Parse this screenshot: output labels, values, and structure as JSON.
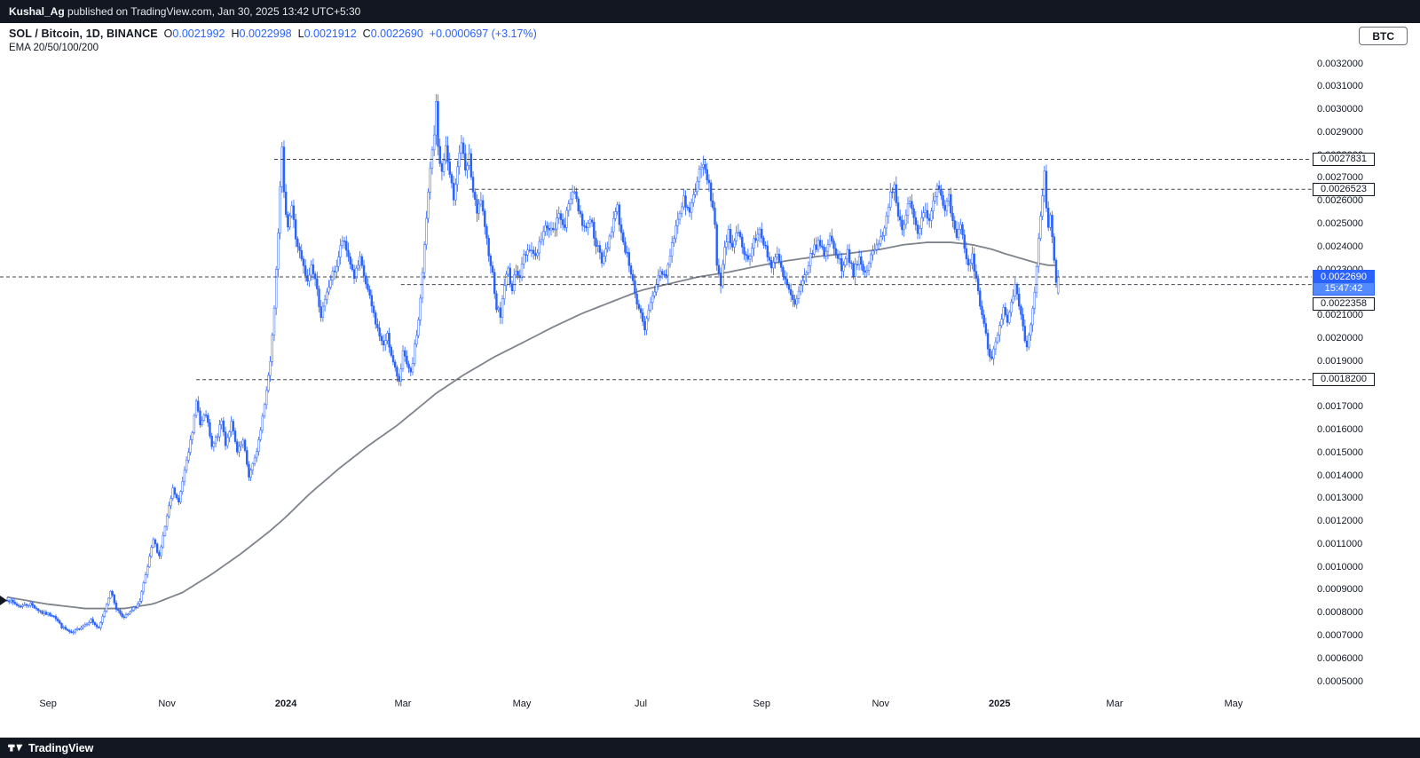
{
  "top_bar": {
    "author": "Kushal_Ag",
    "rest": " published on TradingView.com, Jan 30, 2025 13:42 UTC+5:30"
  },
  "header": {
    "symbol": "SOL / Bitcoin, 1D, BINANCE",
    "ohlc": {
      "o_label": "O",
      "o": "0.0021992",
      "h_label": "H",
      "h": "0.0022998",
      "l_label": "L",
      "l": "0.0021912",
      "c_label": "C",
      "c": "0.0022690",
      "change": "+0.0000697 (+3.17%)"
    },
    "indicator": "EMA 20/50/100/200"
  },
  "toolbar": {
    "currency_button": "BTC"
  },
  "footer": {
    "brand": "TradingView"
  },
  "colors": {
    "accent": "#2962FF",
    "candle_up_fill": "#ffffff",
    "candle_up_border": "#2962FF",
    "candle_down": "#2962FF",
    "wick": "#2962FF",
    "ema_line": "#7e838c",
    "level_line": "#42464e",
    "current_price_bg": "#2962FF",
    "countdown_bg": "#538aff",
    "bar_bg": "#131722",
    "text_dark": "#131722"
  },
  "chart_data": {
    "type": "candlestick",
    "symbol": "SOL / Bitcoin",
    "interval": "1D",
    "exchange": "BINANCE",
    "title": "SOL / Bitcoin, 1D, BINANCE",
    "last": {
      "open": 0.0021992,
      "high": 0.0022998,
      "low": 0.0021912,
      "close": 0.002269,
      "change": "+0.0000697",
      "change_pct": "+3.17%"
    },
    "y_axis": {
      "min": 0.0005,
      "max": 0.0032,
      "step": 0.0001,
      "decimals": 7
    },
    "x_ticks": [
      {
        "label": "Sep",
        "d": 21
      },
      {
        "label": "Nov",
        "d": 82
      },
      {
        "label": "2024",
        "d": 143,
        "major": true
      },
      {
        "label": "Mar",
        "d": 203
      },
      {
        "label": "May",
        "d": 264
      },
      {
        "label": "Jul",
        "d": 325
      },
      {
        "label": "Sep",
        "d": 387
      },
      {
        "label": "Nov",
        "d": 448
      },
      {
        "label": "2025",
        "d": 509,
        "major": true
      },
      {
        "label": "Mar",
        "d": 568
      },
      {
        "label": "May",
        "d": 629
      }
    ],
    "levels": [
      {
        "price": 0.0027831,
        "start_d": 137
      },
      {
        "price": 0.0026523,
        "start_d": 237
      },
      {
        "price": 0.0022358,
        "start_d": 202
      },
      {
        "price": 0.00182,
        "start_d": 97
      }
    ],
    "price_line": {
      "price": 0.002269,
      "time": "15:47:42"
    },
    "days_total": 540,
    "close_anchors": [
      [
        0,
        0.00086
      ],
      [
        6,
        0.00083
      ],
      [
        12,
        0.00084
      ],
      [
        18,
        0.0008
      ],
      [
        24,
        0.00079
      ],
      [
        28,
        0.00074
      ],
      [
        33,
        0.00071
      ],
      [
        38,
        0.00074
      ],
      [
        43,
        0.00077
      ],
      [
        47,
        0.00073
      ],
      [
        50,
        0.00081
      ],
      [
        53,
        0.0009
      ],
      [
        56,
        0.00082
      ],
      [
        60,
        0.00078
      ],
      [
        64,
        0.00081
      ],
      [
        68,
        0.00085
      ],
      [
        72,
        0.001
      ],
      [
        75,
        0.00112
      ],
      [
        78,
        0.00105
      ],
      [
        82,
        0.00122
      ],
      [
        85,
        0.00134
      ],
      [
        88,
        0.00128
      ],
      [
        92,
        0.00148
      ],
      [
        95,
        0.00158
      ],
      [
        97,
        0.00174
      ],
      [
        99,
        0.00162
      ],
      [
        102,
        0.00167
      ],
      [
        105,
        0.00152
      ],
      [
        108,
        0.00158
      ],
      [
        110,
        0.00164
      ],
      [
        112,
        0.00154
      ],
      [
        115,
        0.00163
      ],
      [
        118,
        0.0015
      ],
      [
        121,
        0.00155
      ],
      [
        124,
        0.0014
      ],
      [
        127,
        0.00147
      ],
      [
        130,
        0.0016
      ],
      [
        133,
        0.00178
      ],
      [
        135,
        0.0019
      ],
      [
        137,
        0.00215
      ],
      [
        139,
        0.00248
      ],
      [
        140,
        0.00268
      ],
      [
        141,
        0.00282
      ],
      [
        142,
        0.00262
      ],
      [
        144,
        0.0025
      ],
      [
        146,
        0.00258
      ],
      [
        148,
        0.00244
      ],
      [
        151,
        0.00234
      ],
      [
        154,
        0.00224
      ],
      [
        156,
        0.00232
      ],
      [
        158,
        0.00226
      ],
      [
        161,
        0.0021
      ],
      [
        163,
        0.00216
      ],
      [
        166,
        0.00226
      ],
      [
        169,
        0.00232
      ],
      [
        172,
        0.00243
      ],
      [
        175,
        0.00236
      ],
      [
        178,
        0.00227
      ],
      [
        181,
        0.00234
      ],
      [
        184,
        0.00224
      ],
      [
        187,
        0.00214
      ],
      [
        190,
        0.00204
      ],
      [
        193,
        0.00196
      ],
      [
        195,
        0.00203
      ],
      [
        197,
        0.00192
      ],
      [
        199,
        0.00186
      ],
      [
        201,
        0.00182
      ],
      [
        203,
        0.00194
      ],
      [
        205,
        0.00188
      ],
      [
        207,
        0.00184
      ],
      [
        209,
        0.00196
      ],
      [
        211,
        0.00208
      ],
      [
        213,
        0.00228
      ],
      [
        215,
        0.00252
      ],
      [
        217,
        0.00274
      ],
      [
        219,
        0.0029
      ],
      [
        220,
        0.00302
      ],
      [
        221,
        0.00284
      ],
      [
        223,
        0.00272
      ],
      [
        225,
        0.00284
      ],
      [
        227,
        0.0027
      ],
      [
        229,
        0.00262
      ],
      [
        231,
        0.00276
      ],
      [
        233,
        0.00286
      ],
      [
        235,
        0.00272
      ],
      [
        237,
        0.00279
      ],
      [
        239,
        0.00264
      ],
      [
        241,
        0.00254
      ],
      [
        243,
        0.00261
      ],
      [
        245,
        0.00247
      ],
      [
        247,
        0.00238
      ],
      [
        249,
        0.00228
      ],
      [
        251,
        0.00214
      ],
      [
        253,
        0.0021
      ],
      [
        255,
        0.00224
      ],
      [
        257,
        0.0023
      ],
      [
        259,
        0.00221
      ],
      [
        261,
        0.00231
      ],
      [
        263,
        0.00227
      ],
      [
        265,
        0.00236
      ],
      [
        268,
        0.0024
      ],
      [
        271,
        0.00236
      ],
      [
        274,
        0.00244
      ],
      [
        277,
        0.0025
      ],
      [
        280,
        0.00246
      ],
      [
        283,
        0.00254
      ],
      [
        286,
        0.0025
      ],
      [
        289,
        0.00262
      ],
      [
        291,
        0.00266
      ],
      [
        293,
        0.00256
      ],
      [
        296,
        0.00248
      ],
      [
        299,
        0.00253
      ],
      [
        302,
        0.00242
      ],
      [
        305,
        0.00233
      ],
      [
        308,
        0.00241
      ],
      [
        311,
        0.00252
      ],
      [
        313,
        0.00257
      ],
      [
        315,
        0.00246
      ],
      [
        318,
        0.00236
      ],
      [
        321,
        0.00226
      ],
      [
        323,
        0.00214
      ],
      [
        325,
        0.0021
      ],
      [
        327,
        0.00203
      ],
      [
        329,
        0.00212
      ],
      [
        332,
        0.00221
      ],
      [
        335,
        0.0023
      ],
      [
        338,
        0.00227
      ],
      [
        341,
        0.00241
      ],
      [
        344,
        0.00252
      ],
      [
        347,
        0.00261
      ],
      [
        350,
        0.00255
      ],
      [
        353,
        0.00266
      ],
      [
        355,
        0.00272
      ],
      [
        357,
        0.00276
      ],
      [
        359,
        0.0027
      ],
      [
        361,
        0.00262
      ],
      [
        363,
        0.0025
      ],
      [
        364,
        0.00233
      ],
      [
        366,
        0.00224
      ],
      [
        368,
        0.00238
      ],
      [
        370,
        0.00246
      ],
      [
        372,
        0.0024
      ],
      [
        374,
        0.00248
      ],
      [
        377,
        0.00241
      ],
      [
        380,
        0.00234
      ],
      [
        383,
        0.00242
      ],
      [
        386,
        0.00247
      ],
      [
        389,
        0.0024
      ],
      [
        392,
        0.00231
      ],
      [
        395,
        0.00236
      ],
      [
        398,
        0.00227
      ],
      [
        401,
        0.00221
      ],
      [
        404,
        0.00214
      ],
      [
        407,
        0.00222
      ],
      [
        410,
        0.0023
      ],
      [
        413,
        0.00238
      ],
      [
        416,
        0.00242
      ],
      [
        419,
        0.00237
      ],
      [
        422,
        0.00244
      ],
      [
        425,
        0.00238
      ],
      [
        428,
        0.00231
      ],
      [
        431,
        0.00238
      ],
      [
        434,
        0.00229
      ],
      [
        437,
        0.00234
      ],
      [
        440,
        0.00228
      ],
      [
        443,
        0.00236
      ],
      [
        446,
        0.0024
      ],
      [
        449,
        0.00246
      ],
      [
        451,
        0.00254
      ],
      [
        453,
        0.00263
      ],
      [
        455,
        0.00268
      ],
      [
        457,
        0.00254
      ],
      [
        459,
        0.00246
      ],
      [
        461,
        0.00253
      ],
      [
        463,
        0.00262
      ],
      [
        465,
        0.00254
      ],
      [
        467,
        0.00246
      ],
      [
        469,
        0.00253
      ],
      [
        471,
        0.00258
      ],
      [
        473,
        0.00251
      ],
      [
        475,
        0.00261
      ],
      [
        477,
        0.00267
      ],
      [
        479,
        0.00261
      ],
      [
        481,
        0.00255
      ],
      [
        483,
        0.00261
      ],
      [
        485,
        0.0025
      ],
      [
        487,
        0.00243
      ],
      [
        489,
        0.00249
      ],
      [
        491,
        0.0024
      ],
      [
        493,
        0.00231
      ],
      [
        495,
        0.00236
      ],
      [
        497,
        0.00226
      ],
      [
        499,
        0.00215
      ],
      [
        501,
        0.00206
      ],
      [
        503,
        0.00196
      ],
      [
        505,
        0.00191
      ],
      [
        507,
        0.002
      ],
      [
        509,
        0.00206
      ],
      [
        511,
        0.00213
      ],
      [
        513,
        0.00206
      ],
      [
        515,
        0.00215
      ],
      [
        517,
        0.00222
      ],
      [
        519,
        0.00214
      ],
      [
        521,
        0.00204
      ],
      [
        523,
        0.00195
      ],
      [
        525,
        0.00206
      ],
      [
        527,
        0.00221
      ],
      [
        529,
        0.00242
      ],
      [
        531,
        0.00263
      ],
      [
        532,
        0.00272
      ],
      [
        533,
        0.00256
      ],
      [
        534,
        0.00248
      ],
      [
        535,
        0.00253
      ],
      [
        536,
        0.00244
      ],
      [
        537,
        0.00233
      ],
      [
        538,
        0.00226
      ],
      [
        539,
        0.002269
      ]
    ],
    "ema_anchors": [
      [
        0,
        0.00087
      ],
      [
        20,
        0.00084
      ],
      [
        40,
        0.00082
      ],
      [
        60,
        0.00082
      ],
      [
        75,
        0.00084
      ],
      [
        90,
        0.00089
      ],
      [
        105,
        0.00097
      ],
      [
        120,
        0.00106
      ],
      [
        135,
        0.00116
      ],
      [
        143,
        0.00122
      ],
      [
        155,
        0.00132
      ],
      [
        170,
        0.00143
      ],
      [
        185,
        0.00153
      ],
      [
        200,
        0.00162
      ],
      [
        210,
        0.00169
      ],
      [
        220,
        0.00176
      ],
      [
        234,
        0.00184
      ],
      [
        250,
        0.00192
      ],
      [
        264,
        0.00198
      ],
      [
        280,
        0.00205
      ],
      [
        295,
        0.00211
      ],
      [
        310,
        0.00216
      ],
      [
        325,
        0.00221
      ],
      [
        340,
        0.00224
      ],
      [
        355,
        0.00227
      ],
      [
        370,
        0.00229
      ],
      [
        387,
        0.00232
      ],
      [
        400,
        0.00234
      ],
      [
        417,
        0.00236
      ],
      [
        430,
        0.00237
      ],
      [
        448,
        0.00239
      ],
      [
        460,
        0.00241
      ],
      [
        472,
        0.00242
      ],
      [
        484,
        0.00242
      ],
      [
        495,
        0.00241
      ],
      [
        505,
        0.00239
      ],
      [
        512,
        0.00237
      ],
      [
        520,
        0.00235
      ],
      [
        528,
        0.00233
      ],
      [
        534,
        0.00232
      ],
      [
        539,
        0.00232
      ]
    ]
  }
}
